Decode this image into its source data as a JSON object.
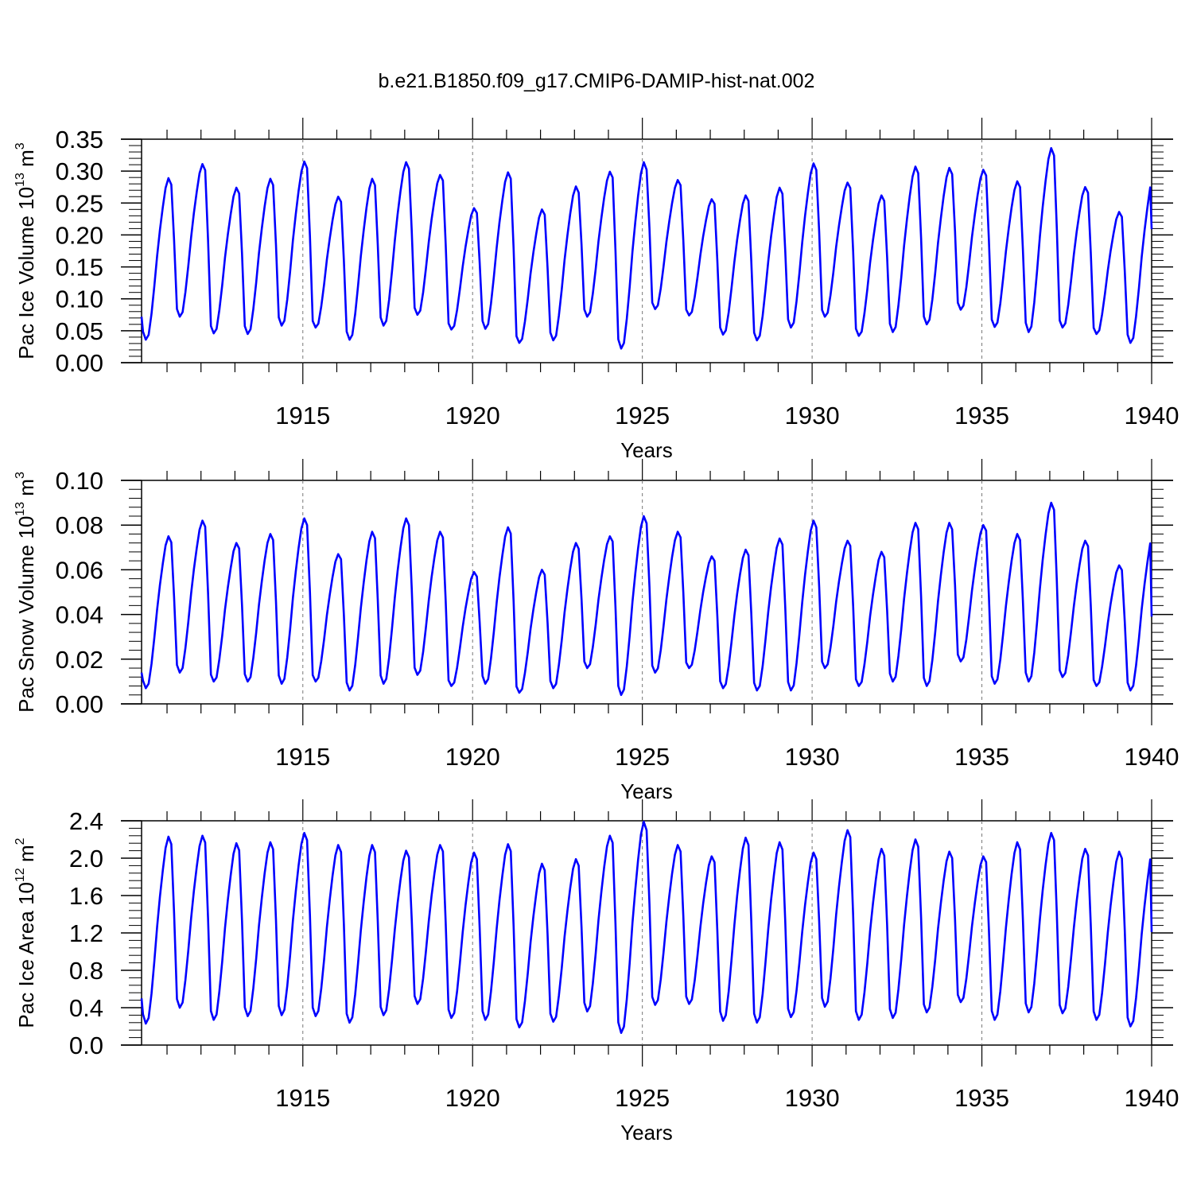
{
  "title": "b.e21.B1850.f09_g17.CMIP6-DAMIP-hist-nat.002",
  "colors": {
    "series": "#0000ff",
    "frame": "#000000",
    "grid": "#777777"
  },
  "chart_data": [
    {
      "type": "line",
      "ylabel_main": "Pac Ice Volume 10",
      "ylabel_exp": "13",
      "ylabel_unit": " m",
      "ylabel_unit_exp": "3",
      "xlabel": "Years",
      "xlim": [
        1910.25,
        1940.0
      ],
      "ylim": [
        0.0,
        0.35
      ],
      "xticks": [
        1915,
        1920,
        1925,
        1930,
        1935,
        1940
      ],
      "yticks": [
        "0.00",
        "0.05",
        "0.10",
        "0.15",
        "0.20",
        "0.25",
        "0.30",
        "0.35"
      ],
      "vertical_dashed_grid": true,
      "years": [
        1910,
        1911,
        1912,
        1913,
        1914,
        1915,
        1916,
        1917,
        1918,
        1919,
        1920,
        1921,
        1922,
        1923,
        1924,
        1925,
        1926,
        1927,
        1928,
        1929,
        1930,
        1931,
        1932,
        1933,
        1934,
        1935,
        1936,
        1937,
        1938,
        1939
      ],
      "annual_max": [
        0.289,
        0.311,
        0.274,
        0.288,
        0.315,
        0.26,
        0.288,
        0.314,
        0.294,
        0.242,
        0.298,
        0.24,
        0.276,
        0.299,
        0.314,
        0.286,
        0.256,
        0.262,
        0.274,
        0.312,
        0.282,
        0.262,
        0.307,
        0.305,
        0.302,
        0.284,
        0.336,
        0.275,
        0.236,
        0.29
      ],
      "annual_min": [
        0.036,
        0.072,
        0.046,
        0.045,
        0.058,
        0.055,
        0.036,
        0.058,
        0.075,
        0.052,
        0.053,
        0.031,
        0.035,
        0.072,
        0.022,
        0.084,
        0.074,
        0.044,
        0.035,
        0.055,
        0.072,
        0.042,
        0.048,
        0.06,
        0.083,
        0.056,
        0.048,
        0.055,
        0.045,
        0.031
      ],
      "start_value": 0.072,
      "end_value": 0.209
    },
    {
      "type": "line",
      "ylabel_main": "Pac Snow Volume 10",
      "ylabel_exp": "13",
      "ylabel_unit": " m",
      "ylabel_unit_exp": "3",
      "xlabel": "Years",
      "xlim": [
        1910.25,
        1940.0
      ],
      "ylim": [
        0.0,
        0.1
      ],
      "xticks": [
        1915,
        1920,
        1925,
        1930,
        1935,
        1940
      ],
      "yticks": [
        "0.00",
        "0.02",
        "0.04",
        "0.06",
        "0.08",
        "0.10"
      ],
      "vertical_dashed_grid": true,
      "years": [
        1910,
        1911,
        1912,
        1913,
        1914,
        1915,
        1916,
        1917,
        1918,
        1919,
        1920,
        1921,
        1922,
        1923,
        1924,
        1925,
        1926,
        1927,
        1928,
        1929,
        1930,
        1931,
        1932,
        1933,
        1934,
        1935,
        1936,
        1937,
        1938,
        1939
      ],
      "annual_max": [
        0.075,
        0.082,
        0.072,
        0.076,
        0.083,
        0.067,
        0.077,
        0.083,
        0.077,
        0.059,
        0.079,
        0.06,
        0.072,
        0.075,
        0.084,
        0.077,
        0.066,
        0.069,
        0.074,
        0.082,
        0.073,
        0.068,
        0.081,
        0.081,
        0.08,
        0.076,
        0.09,
        0.073,
        0.062,
        0.076
      ],
      "annual_min": [
        0.007,
        0.014,
        0.01,
        0.01,
        0.009,
        0.01,
        0.006,
        0.009,
        0.013,
        0.008,
        0.009,
        0.005,
        0.007,
        0.016,
        0.004,
        0.014,
        0.016,
        0.007,
        0.006,
        0.006,
        0.016,
        0.008,
        0.01,
        0.008,
        0.019,
        0.009,
        0.01,
        0.012,
        0.008,
        0.006
      ],
      "start_value": 0.014,
      "end_value": 0.039
    },
    {
      "type": "line",
      "ylabel_main": "Pac Ice Area 10",
      "ylabel_exp": "12",
      "ylabel_unit": " m",
      "ylabel_unit_exp": "2",
      "xlabel": "Years",
      "xlim": [
        1910.25,
        1940.0
      ],
      "ylim": [
        0.0,
        2.4
      ],
      "xticks": [
        1915,
        1920,
        1925,
        1930,
        1935,
        1940
      ],
      "yticks": [
        "0.0",
        "0.4",
        "0.8",
        "1.2",
        "1.6",
        "2.0",
        "2.4"
      ],
      "vertical_dashed_grid": true,
      "years": [
        1910,
        1911,
        1912,
        1913,
        1914,
        1915,
        1916,
        1917,
        1918,
        1919,
        1920,
        1921,
        1922,
        1923,
        1924,
        1925,
        1926,
        1927,
        1928,
        1929,
        1930,
        1931,
        1932,
        1933,
        1934,
        1935,
        1936,
        1937,
        1938,
        1939
      ],
      "annual_max": [
        2.23,
        2.24,
        2.16,
        2.17,
        2.27,
        2.14,
        2.14,
        2.08,
        2.14,
        2.06,
        2.15,
        1.94,
        1.99,
        2.24,
        2.39,
        2.14,
        2.02,
        2.22,
        2.17,
        2.06,
        2.3,
        2.1,
        2.2,
        2.07,
        2.02,
        2.17,
        2.27,
        2.1,
        2.07,
        2.1
      ],
      "annual_min": [
        0.23,
        0.4,
        0.27,
        0.31,
        0.32,
        0.31,
        0.24,
        0.32,
        0.44,
        0.29,
        0.27,
        0.19,
        0.25,
        0.36,
        0.13,
        0.43,
        0.44,
        0.26,
        0.24,
        0.3,
        0.41,
        0.27,
        0.29,
        0.35,
        0.46,
        0.27,
        0.35,
        0.34,
        0.27,
        0.2
      ],
      "start_value": 0.5,
      "end_value": 1.21
    }
  ]
}
